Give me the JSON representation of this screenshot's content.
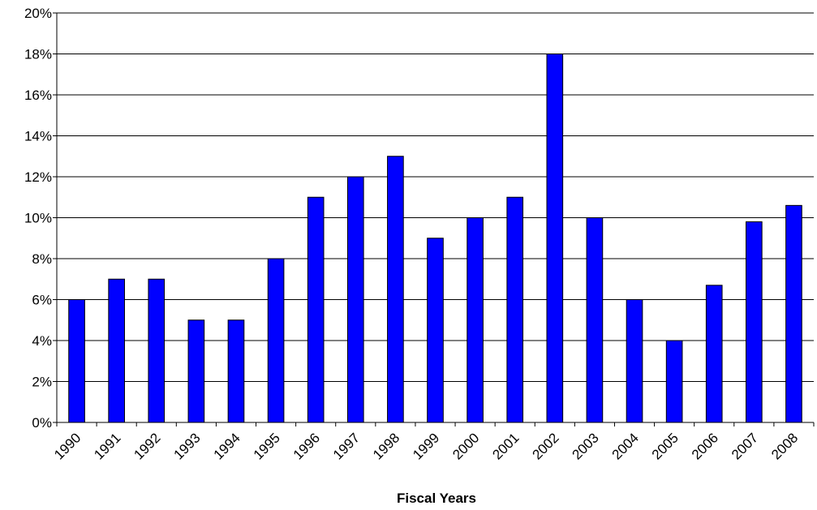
{
  "chart_data": {
    "type": "bar",
    "title": "",
    "xlabel": "Fiscal Years",
    "ylabel": "",
    "categories": [
      "1990",
      "1991",
      "1992",
      "1993",
      "1994",
      "1995",
      "1996",
      "1997",
      "1998",
      "1999",
      "2000",
      "2001",
      "2002",
      "2003",
      "2004",
      "2005",
      "2006",
      "2007",
      "2008"
    ],
    "values": [
      6,
      7,
      7,
      5,
      5,
      8,
      11,
      12,
      13,
      9,
      10,
      11,
      18,
      10,
      6,
      4,
      6.7,
      9.8,
      10.6
    ],
    "ylim": [
      0,
      20
    ],
    "yticks": [
      0,
      2,
      4,
      6,
      8,
      10,
      12,
      14,
      16,
      18,
      20
    ],
    "ytick_format": "%",
    "grid": true,
    "legend": "none",
    "bar_color": "#0000FF",
    "bar_edge_color": "#000000"
  }
}
